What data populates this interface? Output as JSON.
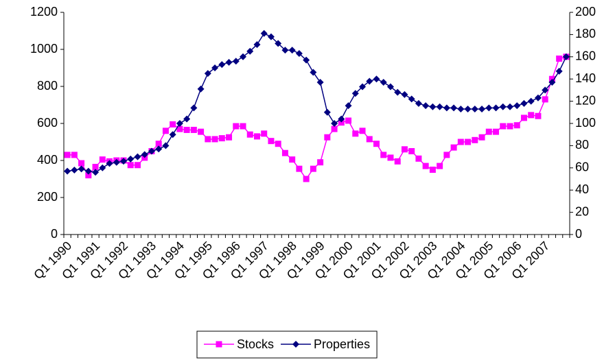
{
  "chart_data": {
    "type": "line",
    "categories": [
      "Q1 1990",
      null,
      null,
      null,
      "Q1 1991",
      null,
      null,
      null,
      "Q1 1992",
      null,
      null,
      null,
      "Q1 1993",
      null,
      null,
      null,
      "Q1 1994",
      null,
      null,
      null,
      "Q1 1995",
      null,
      null,
      null,
      "Q1 1996",
      null,
      null,
      null,
      "Q1 1997",
      null,
      null,
      null,
      "Q1 1998",
      null,
      null,
      null,
      "Q1 1999",
      null,
      null,
      null,
      "Q1 2000",
      null,
      null,
      null,
      "Q1 2001",
      null,
      null,
      null,
      "Q1 2002",
      null,
      null,
      null,
      "Q1 2003",
      null,
      null,
      null,
      "Q1 2004",
      null,
      null,
      null,
      "Q1 2005",
      null,
      null,
      null,
      "Q1 2006",
      null,
      null,
      null,
      "Q1 2007",
      null,
      null,
      null
    ],
    "series": [
      {
        "name": "Stocks",
        "color": "#ff00ff",
        "marker": "square",
        "values": [
          430,
          430,
          385,
          320,
          365,
          405,
          395,
          400,
          400,
          375,
          375,
          415,
          450,
          490,
          560,
          595,
          570,
          565,
          565,
          555,
          515,
          515,
          520,
          525,
          585,
          585,
          540,
          530,
          545,
          505,
          490,
          440,
          405,
          355,
          300,
          355,
          390,
          525,
          570,
          605,
          615,
          545,
          560,
          515,
          490,
          430,
          415,
          395,
          460,
          450,
          410,
          370,
          350,
          370,
          430,
          470,
          500,
          500,
          510,
          525,
          555,
          555,
          585,
          585,
          590,
          630,
          645,
          640,
          730,
          840,
          950,
          960
        ]
      },
      {
        "name": "Properties",
        "color": "#000080",
        "marker": "diamond",
        "axis": "y2",
        "values": [
          57,
          58,
          59,
          57,
          56,
          60,
          64,
          65,
          66,
          68,
          70,
          72,
          75,
          77,
          80,
          90,
          100,
          104,
          114,
          131,
          145,
          150,
          153,
          155,
          156,
          160,
          165,
          171,
          181,
          178,
          172,
          166,
          166,
          163,
          157,
          146,
          137,
          110,
          100,
          104,
          116,
          127,
          133,
          138,
          140,
          137,
          133,
          128,
          126,
          122,
          118,
          116,
          115,
          115,
          114,
          114,
          113,
          113,
          113,
          113,
          114,
          114,
          115,
          115,
          116,
          118,
          120,
          123,
          130,
          137,
          147,
          160
        ]
      }
    ],
    "ylim": [
      0,
      1200
    ],
    "yticks": [
      0,
      200,
      400,
      600,
      800,
      1000,
      1200
    ],
    "y2lim": [
      0,
      200
    ],
    "y2ticks": [
      0,
      20,
      40,
      60,
      80,
      100,
      120,
      140,
      160,
      180,
      200
    ],
    "grid": false,
    "legend": "bottom"
  }
}
